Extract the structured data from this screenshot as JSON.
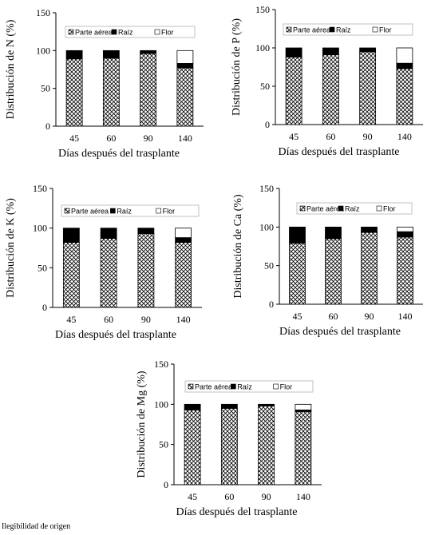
{
  "chart_data": [
    {
      "type": "bar",
      "stacked": true,
      "categories": [
        "45",
        "60",
        "90",
        "140"
      ],
      "ylabel": "Distribución  de N (%)",
      "xlabel": "Días después del trasplante",
      "ylim": [
        0,
        150
      ],
      "yticks": [
        0,
        50,
        100,
        150
      ],
      "legend_position": "top",
      "series": [
        {
          "name": "Parte aérea",
          "values": [
            89,
            90,
            96,
            77
          ]
        },
        {
          "name": "Raíz",
          "values": [
            11,
            10,
            4,
            6
          ]
        },
        {
          "name": "Flor",
          "values": [
            0,
            0,
            0,
            17
          ]
        }
      ]
    },
    {
      "type": "bar",
      "stacked": true,
      "categories": [
        "45",
        "60",
        "90",
        "140"
      ],
      "ylabel": "Distribución  de  P (%)",
      "xlabel": "Días después del trasplante",
      "ylim": [
        0,
        150
      ],
      "yticks": [
        0,
        50,
        100,
        150
      ],
      "legend_position": "top",
      "series": [
        {
          "name": "Parte aérea",
          "values": [
            88,
            91,
            95,
            73
          ]
        },
        {
          "name": "Raíz",
          "values": [
            12,
            9,
            5,
            7
          ]
        },
        {
          "name": "Flor",
          "values": [
            0,
            0,
            0,
            20
          ]
        }
      ]
    },
    {
      "type": "bar",
      "stacked": true,
      "categories": [
        "45",
        "60",
        "90",
        "140"
      ],
      "ylabel": "Distribución  de  K (%)",
      "xlabel": "Días después del trasplante",
      "ylim": [
        0,
        150
      ],
      "yticks": [
        0,
        50,
        100,
        150
      ],
      "legend_position": "top",
      "series": [
        {
          "name": "Parte aérea",
          "values": [
            82,
            87,
            93,
            82
          ]
        },
        {
          "name": "Raíz",
          "values": [
            18,
            13,
            7,
            6
          ]
        },
        {
          "name": "Flor",
          "values": [
            0,
            0,
            0,
            12
          ]
        }
      ]
    },
    {
      "type": "bar",
      "stacked": true,
      "categories": [
        "45",
        "60",
        "90",
        "140"
      ],
      "ylabel": "Distribución   de Ca (%)",
      "xlabel": "Días después del trasplante",
      "ylim": [
        0,
        150
      ],
      "yticks": [
        0,
        50,
        100,
        150
      ],
      "legend_position": "top",
      "series": [
        {
          "name": "Parte aérea",
          "values": [
            79,
            85,
            93,
            87
          ]
        },
        {
          "name": "Raíz",
          "values": [
            21,
            15,
            7,
            7
          ]
        },
        {
          "name": "Flor",
          "values": [
            0,
            0,
            0,
            6
          ]
        }
      ]
    },
    {
      "type": "bar",
      "stacked": true,
      "categories": [
        "45",
        "60",
        "90",
        "140"
      ],
      "ylabel": "Distribución de Mg (%)",
      "xlabel": "Días después del trasplante",
      "ylim": [
        0,
        150
      ],
      "yticks": [
        0,
        50,
        100,
        150
      ],
      "legend_position": "top",
      "series": [
        {
          "name": "Parte aérea",
          "values": [
            93,
            95,
            98,
            91
          ]
        },
        {
          "name": "Raíz",
          "values": [
            7,
            5,
            2,
            2
          ]
        },
        {
          "name": "Flor",
          "values": [
            0,
            0,
            0,
            7
          ]
        }
      ]
    }
  ],
  "footer": {
    "text": "Ilegibilidad de origen"
  },
  "colors": {
    "parte_aerea": "crosshatch",
    "raiz": "#000000",
    "flor": "#ffffff"
  }
}
